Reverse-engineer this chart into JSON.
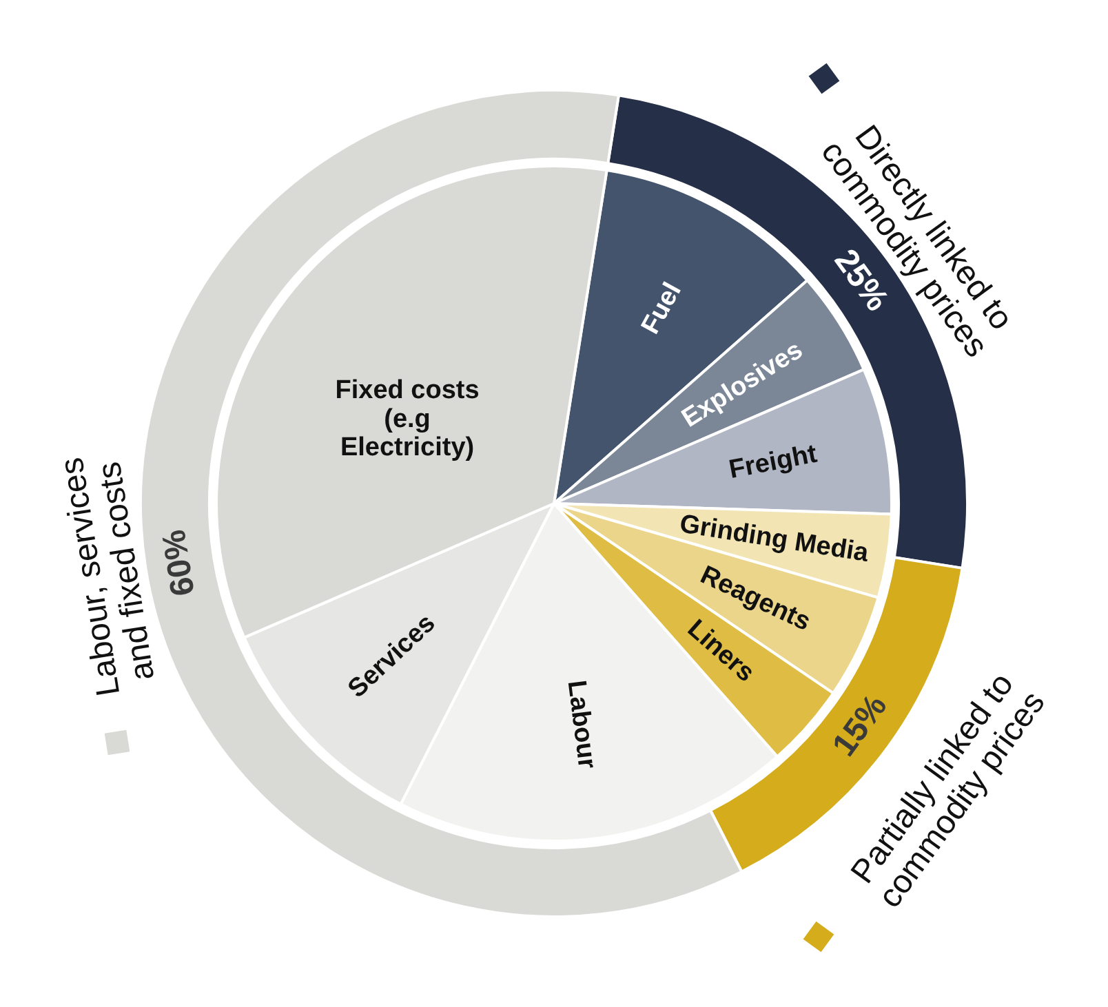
{
  "chart_data": [
    {
      "type": "donut",
      "categories": [
        "Directly linked to\ncommodity prices",
        "Partially linked to\ncommodity prices",
        "Labour, services\nand fixed costs"
      ],
      "values": [
        25,
        15,
        60
      ],
      "value_labels": [
        "25%",
        "15%",
        "60%"
      ],
      "colors": [
        "#253048",
        "#d4ac1c",
        "#d9d9d6"
      ]
    },
    {
      "type": "pie",
      "categories": [
        "Fuel",
        "Explosives",
        "Freight",
        "Grinding Media",
        "Reagents",
        "Liners",
        "Labour",
        "Services",
        "Fixed costs\n(e.g\nElectricity)"
      ],
      "values": [
        11,
        5,
        7,
        4,
        5,
        4,
        19,
        11,
        34
      ],
      "colors": [
        "#44546c",
        "#7b8796",
        "#b0b6c3",
        "#f2e5b3",
        "#ead58a",
        "#dfbd44",
        "#f2f2f0",
        "#e6e6e4",
        "#d9d9d6"
      ]
    }
  ]
}
